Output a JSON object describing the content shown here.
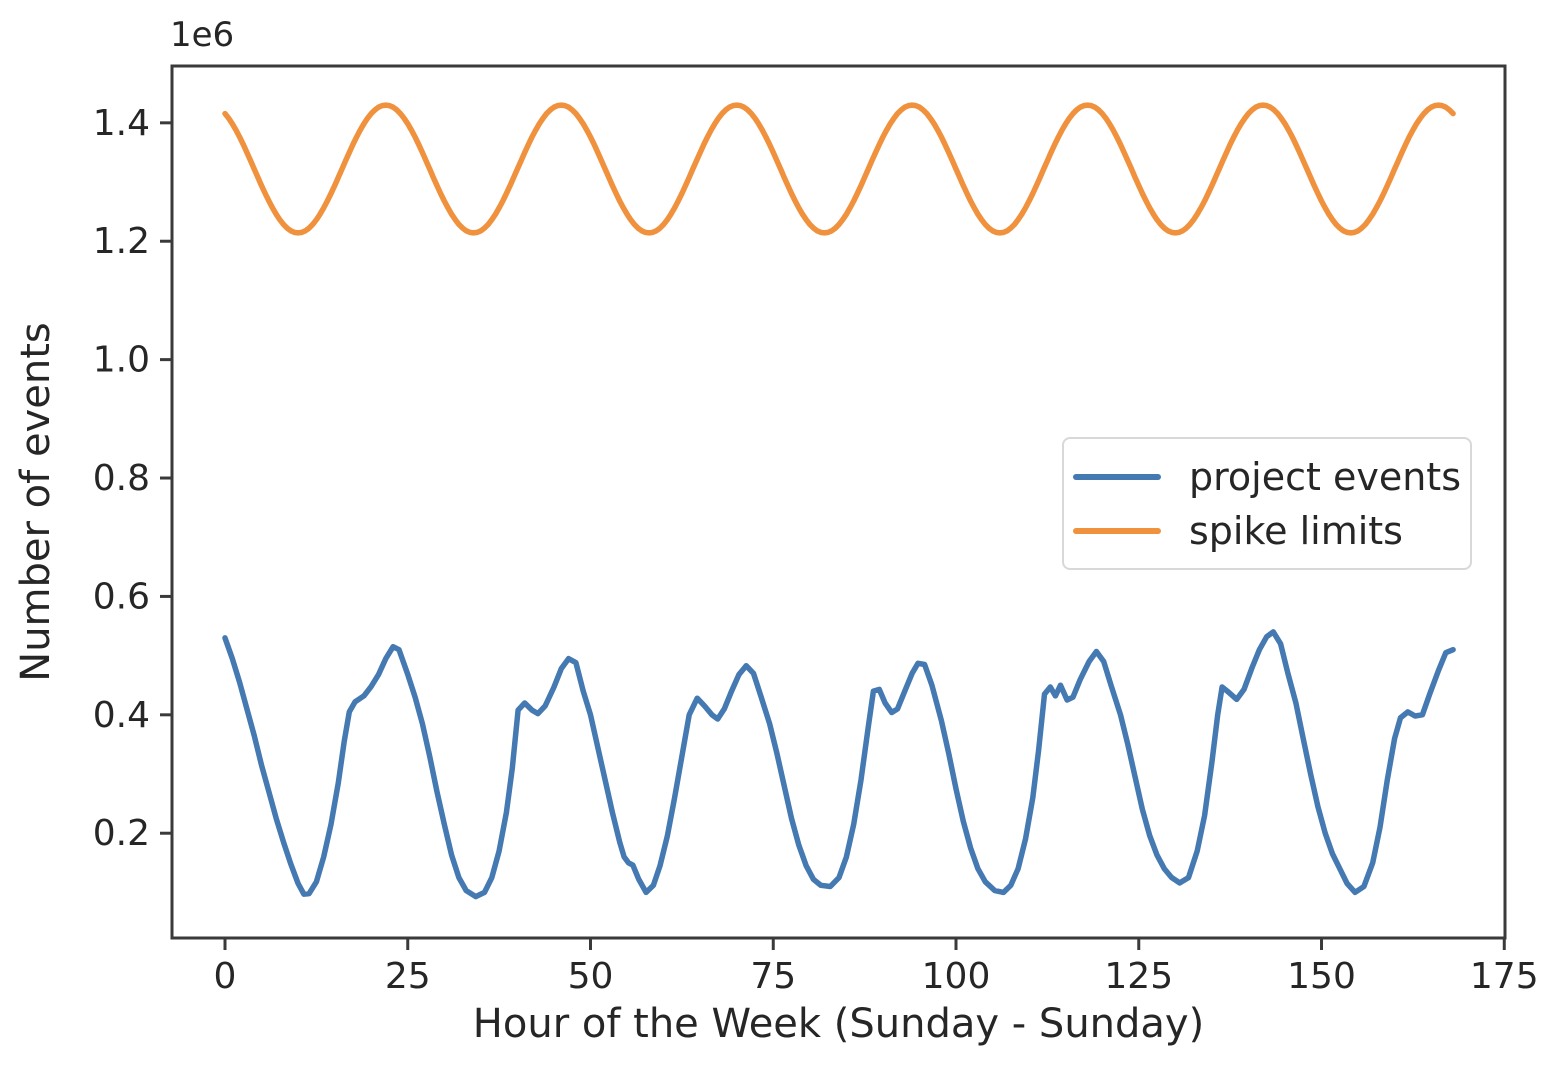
{
  "figure": {
    "background": "#ffffff"
  },
  "chart_data": {
    "type": "line",
    "title": "",
    "xlabel": "Hour of the Week (Sunday - Sunday)",
    "ylabel": "Number of events",
    "y_offset_label": "1e6",
    "grid": false,
    "xlim": [
      -7.25,
      175.1
    ],
    "ylim_millions": [
      0.023,
      1.496
    ],
    "xticks": [
      0,
      25,
      50,
      75,
      100,
      125,
      150,
      175
    ],
    "yticks_millions": [
      0.2,
      0.4,
      0.6,
      0.8,
      1.0,
      1.2,
      1.4
    ],
    "axis_color": "#3a3a3a",
    "text_color": "#262626",
    "legend": {
      "position": "center-right",
      "border_color": "#d8d8d8",
      "background": "#ffffff"
    },
    "series": [
      {
        "name": "project events",
        "color": "#4579b2",
        "x_hours": [
          0,
          1,
          2,
          3,
          4,
          5,
          6,
          7,
          8,
          9,
          10,
          10.8,
          11.5,
          12.5,
          13.5,
          14.5,
          15.5,
          16.3,
          17,
          17.8,
          19,
          20,
          21,
          22,
          23,
          23.8,
          25,
          26,
          27,
          28,
          29,
          30,
          31,
          32,
          33,
          34.3,
          35.5,
          36.5,
          37.5,
          38.5,
          39.3,
          40.1,
          41,
          42,
          42.8,
          43.8,
          45,
          46,
          47,
          48,
          49,
          50,
          51,
          52,
          53,
          54,
          54.6,
          55.2,
          55.8,
          56.6,
          57.6,
          58.6,
          59.5,
          60.5,
          61.5,
          62.5,
          63.5,
          64.6,
          65.6,
          66.6,
          67.4,
          68.3,
          69.3,
          70.3,
          71.3,
          72.3,
          73.3,
          74.5,
          75.5,
          76.5,
          77.5,
          78.5,
          79.5,
          80.5,
          81.5,
          82.8,
          84,
          85,
          86,
          87,
          88,
          88.7,
          89.5,
          90.3,
          91.2,
          92,
          93,
          94,
          94.8,
          95.7,
          96.7,
          98,
          99,
          100,
          101,
          102,
          103,
          104,
          105.3,
          106.5,
          107.5,
          108.5,
          109.5,
          110.5,
          111.3,
          112.1,
          112.9,
          113.6,
          114.3,
          115.2,
          116,
          117,
          118.2,
          119.2,
          120.2,
          121.2,
          122.5,
          123.5,
          124.5,
          125.5,
          126.5,
          127.5,
          128.5,
          129.5,
          130.6,
          131.8,
          133,
          134,
          135,
          135.8,
          136.4,
          137.3,
          138.4,
          139.4,
          140.5,
          141.5,
          142.5,
          143.4,
          144.4,
          145.4,
          146.5,
          147.5,
          148.5,
          149.5,
          150.5,
          151.5,
          152.5,
          153.5,
          154.6,
          155.8,
          157,
          158,
          159,
          160,
          160.8,
          161.8,
          162.8,
          163.8,
          164.8,
          166,
          167,
          168
        ],
        "y_millions": [
          0.53,
          0.495,
          0.455,
          0.41,
          0.365,
          0.315,
          0.27,
          0.225,
          0.185,
          0.148,
          0.115,
          0.097,
          0.098,
          0.118,
          0.16,
          0.215,
          0.285,
          0.355,
          0.405,
          0.422,
          0.432,
          0.448,
          0.468,
          0.495,
          0.515,
          0.51,
          0.468,
          0.43,
          0.385,
          0.33,
          0.27,
          0.215,
          0.163,
          0.125,
          0.103,
          0.093,
          0.1,
          0.125,
          0.17,
          0.235,
          0.31,
          0.408,
          0.42,
          0.408,
          0.402,
          0.415,
          0.447,
          0.478,
          0.495,
          0.488,
          0.44,
          0.4,
          0.345,
          0.29,
          0.235,
          0.185,
          0.16,
          0.15,
          0.146,
          0.122,
          0.1,
          0.112,
          0.145,
          0.195,
          0.26,
          0.33,
          0.4,
          0.428,
          0.415,
          0.4,
          0.393,
          0.41,
          0.44,
          0.468,
          0.483,
          0.47,
          0.432,
          0.385,
          0.335,
          0.28,
          0.225,
          0.18,
          0.145,
          0.122,
          0.112,
          0.11,
          0.125,
          0.16,
          0.215,
          0.29,
          0.38,
          0.44,
          0.443,
          0.42,
          0.404,
          0.41,
          0.44,
          0.47,
          0.487,
          0.485,
          0.45,
          0.39,
          0.335,
          0.275,
          0.22,
          0.175,
          0.14,
          0.118,
          0.103,
          0.1,
          0.112,
          0.14,
          0.19,
          0.26,
          0.34,
          0.435,
          0.447,
          0.432,
          0.45,
          0.425,
          0.43,
          0.46,
          0.49,
          0.507,
          0.49,
          0.45,
          0.4,
          0.35,
          0.295,
          0.24,
          0.196,
          0.163,
          0.14,
          0.125,
          0.116,
          0.125,
          0.17,
          0.23,
          0.32,
          0.4,
          0.447,
          0.438,
          0.426,
          0.443,
          0.48,
          0.51,
          0.532,
          0.54,
          0.52,
          0.47,
          0.42,
          0.36,
          0.3,
          0.245,
          0.2,
          0.165,
          0.14,
          0.115,
          0.1,
          0.11,
          0.15,
          0.21,
          0.29,
          0.36,
          0.395,
          0.405,
          0.398,
          0.4,
          0.435,
          0.475,
          0.505,
          0.51
        ]
      },
      {
        "name": "spike limits",
        "color": "#f0913e",
        "shape": "sinusoid",
        "mean_millions": 1.322,
        "amplitude_millions": 0.108,
        "period_hours": 24,
        "peak_at_hour": 22,
        "x_start_hour": 0,
        "x_end_hour": 168,
        "min_millions": 1.214,
        "max_millions": 1.43
      }
    ]
  }
}
